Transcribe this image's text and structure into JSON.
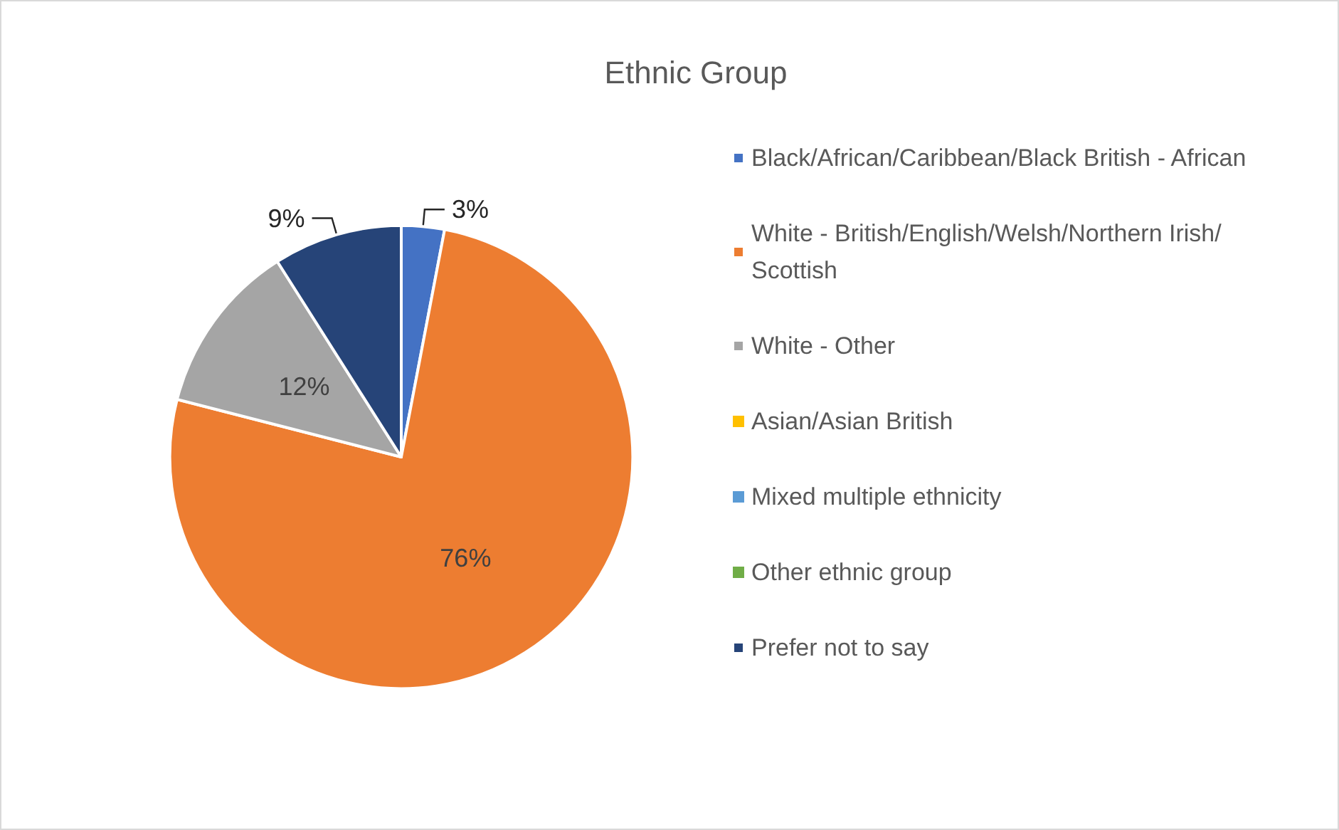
{
  "chart_data": {
    "type": "pie",
    "title": "Ethnic Group",
    "categories": [
      "Black/African/Caribbean/Black British - African",
      "White - British/English/Welsh/Northern Irish/Scottish",
      "White - Other",
      "Asian/Asian British",
      "Mixed multiple ethnicity",
      "Other ethnic group",
      "Prefer not to say"
    ],
    "values": [
      3,
      76,
      12,
      0,
      0,
      0,
      9
    ],
    "colors": [
      "#4472c4",
      "#ed7d31",
      "#a5a5a5",
      "#ffc000",
      "#5b9bd5",
      "#70ad47",
      "#264478"
    ],
    "value_labels": [
      "3%",
      "76%",
      "12%",
      null,
      null,
      null,
      "9%"
    ],
    "legend": "right"
  }
}
